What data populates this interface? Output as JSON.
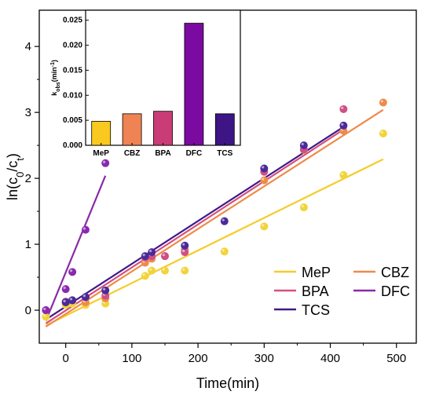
{
  "chart_data": [
    {
      "type": "scatter",
      "xlabel": "Time(min)",
      "ylabel": "ln(c0/ct)",
      "ylabel_parts": {
        "main": "ln(c",
        "sub0": "0",
        "mid": "/c",
        "sub1": "t",
        "end": ")"
      },
      "xlim": [
        -40,
        530
      ],
      "ylim": [
        -0.5,
        4.55
      ],
      "x_ticks": [
        0,
        100,
        200,
        300,
        400,
        500
      ],
      "y_ticks": [
        0,
        1,
        2,
        3,
        4
      ],
      "legend_position": "bottom-right",
      "series": [
        {
          "name": "MeP",
          "color": "#f5cc2a",
          "dot_color": "#f1d43a",
          "points": [
            [
              -30,
              -0.1
            ],
            [
              0,
              0.08
            ],
            [
              10,
              0.1
            ],
            [
              30,
              0.08
            ],
            [
              60,
              0.1
            ],
            [
              120,
              0.52
            ],
            [
              130,
              0.6
            ],
            [
              150,
              0.6
            ],
            [
              180,
              0.6
            ],
            [
              240,
              0.89
            ],
            [
              300,
              1.27
            ],
            [
              360,
              1.56
            ],
            [
              420,
              2.05
            ],
            [
              480,
              2.68
            ]
          ],
          "fit": {
            "x": [
              -30,
              480
            ],
            "y": [
              -0.23,
              2.29
            ]
          }
        },
        {
          "name": "CBZ",
          "color": "#ef8a4a",
          "dot_color": "#ee8b4c",
          "points": [
            [
              -30,
              0.0
            ],
            [
              0,
              0.12
            ],
            [
              10,
              0.15
            ],
            [
              30,
              0.12
            ],
            [
              60,
              0.18
            ],
            [
              120,
              0.72
            ],
            [
              130,
              0.78
            ],
            [
              150,
              0.82
            ],
            [
              180,
              0.92
            ],
            [
              300,
              1.97
            ],
            [
              360,
              2.43
            ],
            [
              420,
              2.72
            ],
            [
              480,
              3.15
            ]
          ],
          "fit": {
            "x": [
              -30,
              480
            ],
            "y": [
              -0.25,
              3.04
            ]
          }
        },
        {
          "name": "BPA",
          "color": "#d6507a",
          "dot_color": "#cf4f86",
          "points": [
            [
              -30,
              0.0
            ],
            [
              0,
              0.13
            ],
            [
              10,
              0.15
            ],
            [
              30,
              0.2
            ],
            [
              60,
              0.22
            ],
            [
              120,
              0.8
            ],
            [
              130,
              0.82
            ],
            [
              150,
              0.82
            ],
            [
              180,
              0.88
            ],
            [
              300,
              2.1
            ],
            [
              360,
              2.44
            ],
            [
              420,
              3.05
            ]
          ],
          "fit": {
            "x": [
              -30,
              420
            ],
            "y": [
              -0.2,
              2.74
            ]
          }
        },
        {
          "name": "DFC",
          "color": "#8a2aa6",
          "dot_color": "#8a2ab0",
          "points": [
            [
              -30,
              0.0
            ],
            [
              0,
              0.32
            ],
            [
              10,
              0.58
            ],
            [
              30,
              1.22
            ],
            [
              60,
              2.23
            ]
          ],
          "fit": {
            "x": [
              -30,
              60
            ],
            "y": [
              -0.16,
              2.04
            ]
          }
        },
        {
          "name": "TCS",
          "color": "#3f1a8c",
          "dot_color": "#4a2a9a",
          "points": [
            [
              0,
              0.12
            ],
            [
              10,
              0.15
            ],
            [
              30,
              0.2
            ],
            [
              60,
              0.3
            ],
            [
              120,
              0.82
            ],
            [
              130,
              0.88
            ],
            [
              180,
              0.98
            ],
            [
              240,
              1.35
            ],
            [
              300,
              2.15
            ],
            [
              360,
              2.5
            ],
            [
              420,
              2.8
            ]
          ],
          "fit": {
            "x": [
              -30,
              420
            ],
            "y": [
              -0.14,
              2.78
            ]
          }
        }
      ]
    },
    {
      "type": "bar",
      "ylabel": "kobs(min-1)",
      "ylabel_parts": {
        "main": "k",
        "sub": "obs",
        "end": "(min",
        "sup": "-1",
        "close": ")"
      },
      "categories": [
        "MeP",
        "CBZ",
        "BPA",
        "DFC",
        "TCS"
      ],
      "values": [
        0.0048,
        0.0063,
        0.0068,
        0.0244,
        0.0063
      ],
      "colors": [
        "#f9c91f",
        "#ef8354",
        "#c93c76",
        "#7a0aa0",
        "#3d1584"
      ],
      "ylim": [
        0,
        0.027
      ],
      "y_ticks": [
        "0.000",
        "0.005",
        "0.010",
        "0.015",
        "0.020",
        "0.025"
      ]
    }
  ]
}
